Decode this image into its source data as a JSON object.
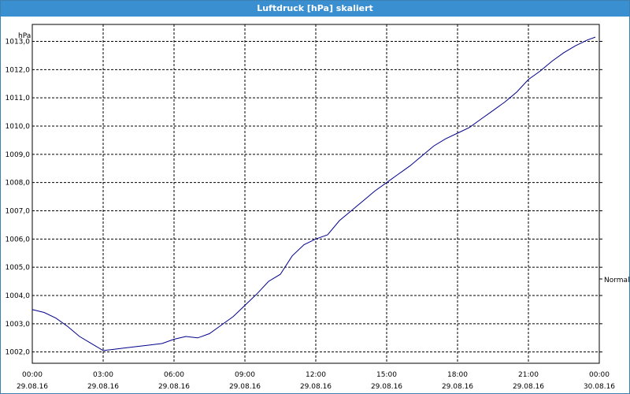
{
  "window": {
    "title": "Luftdruck [hPa] skaliert"
  },
  "colors": {
    "titlebar": "#3a8fd1",
    "series": "#00008b",
    "grid": "#000000"
  },
  "chart_data": {
    "type": "line",
    "title": "Luftdruck [hPa] skaliert",
    "ylabel": "hPa",
    "xlabel": "",
    "grid": true,
    "legend_position": "right",
    "ylim": [
      1001.6,
      1013.6
    ],
    "yticks": [
      {
        "value": 1002,
        "label": "1002,0"
      },
      {
        "value": 1003,
        "label": "1003,0"
      },
      {
        "value": 1004,
        "label": "1004,0"
      },
      {
        "value": 1005,
        "label": "1005,0"
      },
      {
        "value": 1006,
        "label": "1006,0"
      },
      {
        "value": 1007,
        "label": "1007,0"
      },
      {
        "value": 1008,
        "label": "1008,0"
      },
      {
        "value": 1009,
        "label": "1009,0"
      },
      {
        "value": 1010,
        "label": "1010,0"
      },
      {
        "value": 1011,
        "label": "1011,0"
      },
      {
        "value": 1012,
        "label": "1012,0"
      },
      {
        "value": 1013,
        "label": "1013,0"
      }
    ],
    "xlim": [
      "29.08.16 00:00",
      "30.08.16 00:00"
    ],
    "xticks": [
      {
        "time": "00:00",
        "date": "29.08.16"
      },
      {
        "time": "03:00",
        "date": "29.08.16"
      },
      {
        "time": "06:00",
        "date": "29.08.16"
      },
      {
        "time": "09:00",
        "date": "29.08.16"
      },
      {
        "time": "12:00",
        "date": "29.08.16"
      },
      {
        "time": "15:00",
        "date": "29.08.16"
      },
      {
        "time": "18:00",
        "date": "29.08.16"
      },
      {
        "time": "21:00",
        "date": "29.08.16"
      },
      {
        "time": "00:00",
        "date": "30.08.16"
      }
    ],
    "series": [
      {
        "name": "Normal",
        "x": [
          "00:00",
          "00:30",
          "01:00",
          "01:30",
          "02:00",
          "02:30",
          "03:00",
          "03:30",
          "04:00",
          "04:30",
          "05:00",
          "05:30",
          "06:00",
          "06:30",
          "07:00",
          "07:30",
          "08:00",
          "08:30",
          "09:00",
          "09:30",
          "10:00",
          "10:30",
          "11:00",
          "11:30",
          "12:00",
          "12:30",
          "13:00",
          "13:30",
          "14:00",
          "14:30",
          "15:00",
          "15:30",
          "16:00",
          "16:30",
          "17:00",
          "17:30",
          "18:00",
          "18:30",
          "19:00",
          "19:30",
          "20:00",
          "20:30",
          "21:00",
          "21:30",
          "22:00",
          "22:30",
          "23:00",
          "23:30",
          "23:50"
        ],
        "values": [
          1003.5,
          1003.4,
          1003.2,
          1002.9,
          1002.55,
          1002.3,
          1002.05,
          1002.1,
          1002.15,
          1002.2,
          1002.25,
          1002.3,
          1002.45,
          1002.55,
          1002.5,
          1002.65,
          1002.95,
          1003.25,
          1003.65,
          1004.05,
          1004.5,
          1004.75,
          1005.4,
          1005.8,
          1006.0,
          1006.15,
          1006.65,
          1007.0,
          1007.35,
          1007.7,
          1008.0,
          1008.3,
          1008.6,
          1008.95,
          1009.3,
          1009.55,
          1009.75,
          1009.95,
          1010.25,
          1010.55,
          1010.85,
          1011.2,
          1011.65,
          1011.95,
          1012.3,
          1012.6,
          1012.85,
          1013.05,
          1013.15
        ]
      }
    ]
  }
}
